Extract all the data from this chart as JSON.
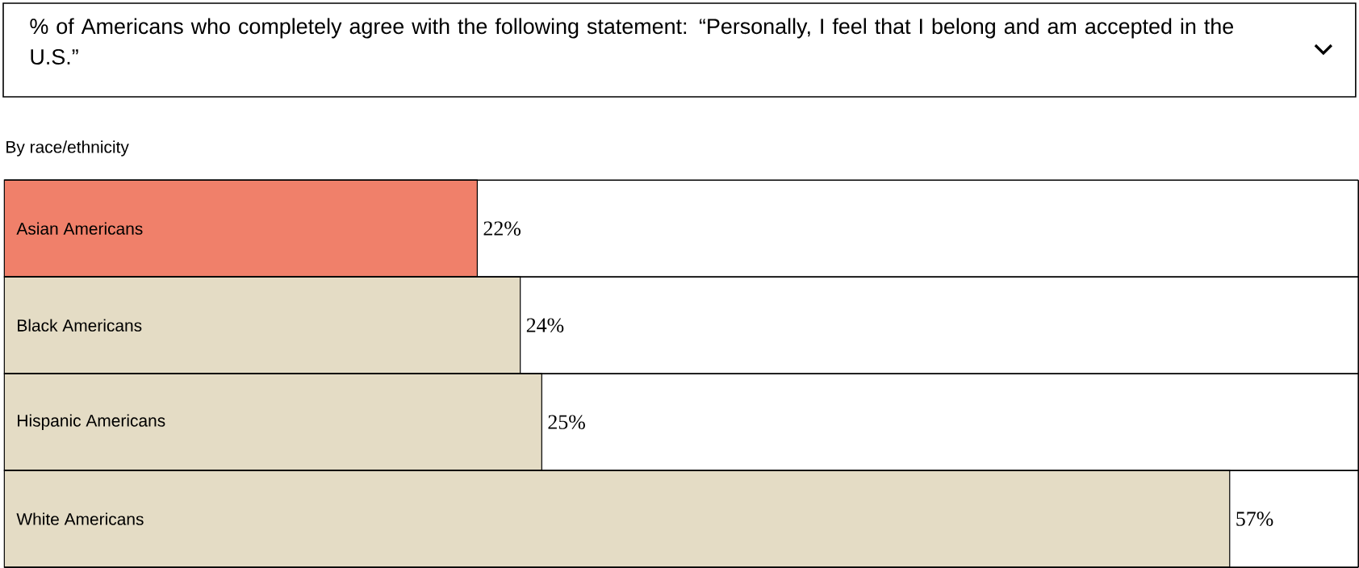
{
  "chart_data": {
    "type": "bar",
    "orientation": "horizontal",
    "title": "% of Americans who completely agree with the following statement: “Personally, I feel that I belong and am accepted in the U.S.”",
    "subtitle": "By race/ethnicity",
    "categories": [
      "Asian Americans",
      "Black Americans",
      "Hispanic Americans",
      "White Americans"
    ],
    "values": [
      22,
      24,
      25,
      57
    ],
    "colors": [
      "#f0806a",
      "#e4dcc5",
      "#e4dcc5",
      "#e4dcc5"
    ],
    "value_labels": [
      "22%",
      "24%",
      "25%",
      "57%"
    ]
  }
}
